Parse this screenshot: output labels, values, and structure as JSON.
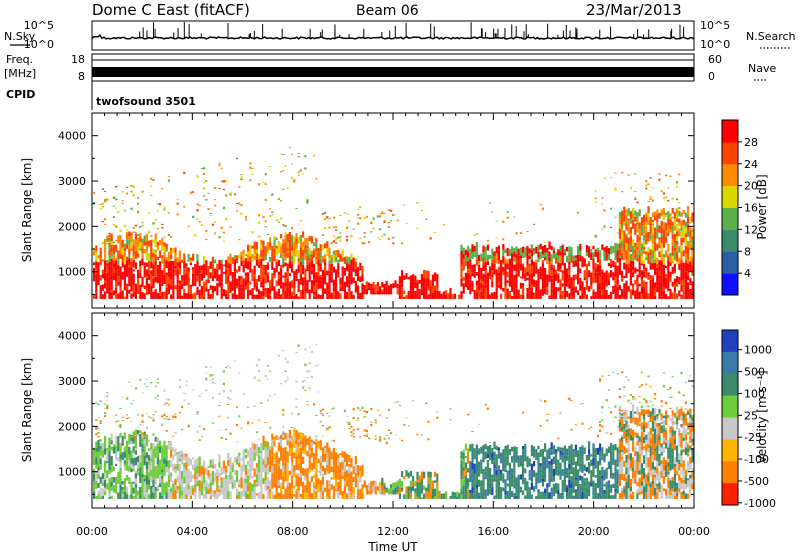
{
  "header": {
    "station": "Dome C East (fitACF)",
    "beam": "Beam 06",
    "date": "23/Mar/2013"
  },
  "top_panels": {
    "nsky_label": "N.Sky",
    "nsearch_label": "N.Search",
    "nsky_ticks": [
      "10^5",
      "10^0"
    ],
    "nsearch_ticks": [
      "10^5",
      "10^0"
    ],
    "freq_label_1": "Freq.",
    "freq_label_2": "[MHz]",
    "freq_ticks": [
      "18",
      "8"
    ],
    "nave_label": "Nave",
    "nave_ticks": [
      "60",
      "0"
    ],
    "cpid_label": "CPID",
    "cpid_value": "twofsound 3501"
  },
  "chart_data": [
    {
      "type": "heatmap",
      "ylabel": "Slant Range [km]",
      "xlabel": "",
      "ylim": [
        200,
        4500
      ],
      "yticks": [
        1000,
        2000,
        3000,
        4000
      ],
      "colorbar": {
        "label": "Power [dB]",
        "ticks": [
          4,
          8,
          12,
          16,
          20,
          24,
          28
        ],
        "colors": [
          "#1010ff",
          "#2a5fa6",
          "#3a8c6a",
          "#5bb04a",
          "#d8d800",
          "#ff8c00",
          "#ff4400",
          "#ff0000"
        ]
      }
    },
    {
      "type": "heatmap",
      "ylabel": "Slant Range [km]",
      "xlabel": "Time UT",
      "ylim": [
        200,
        4500
      ],
      "yticks": [
        1000,
        2000,
        3000,
        4000
      ],
      "xticks": [
        "00:00",
        "04:00",
        "08:00",
        "12:00",
        "16:00",
        "20:00",
        "00:00"
      ],
      "colorbar": {
        "label": "Velocity [m s⁻¹]",
        "ticks": [
          1000,
          500,
          100,
          25,
          -25,
          -100,
          -500,
          -1000
        ],
        "colors": [
          "#2040c0",
          "#3a7aa8",
          "#3a8c6a",
          "#6ccc3a",
          "#c8c8c8",
          "#ffb400",
          "#ff8000",
          "#ff2000"
        ]
      }
    }
  ]
}
